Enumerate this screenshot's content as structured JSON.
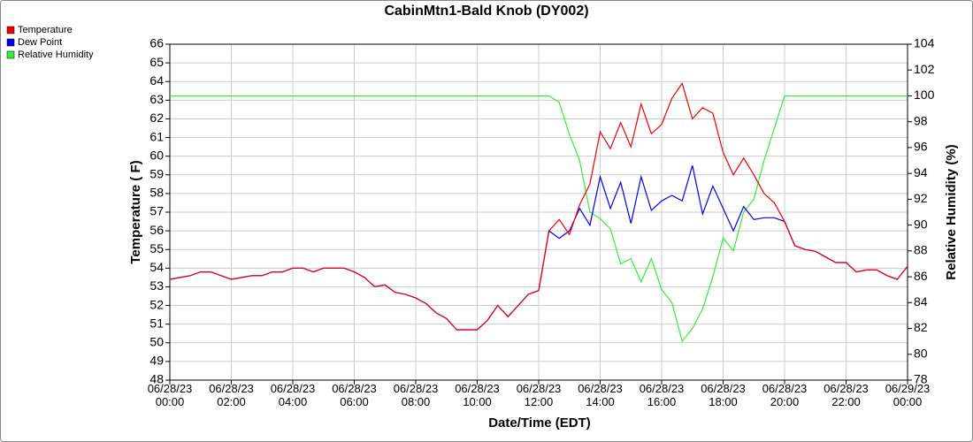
{
  "chart_data": {
    "type": "line",
    "title": "CabinMtn1-Bald Knob (DY002)",
    "x_label": "Date/Time (EDT)",
    "y_label": "Temperature ( F)",
    "y2_label": "Relative Humidity (%)",
    "x": [
      "06/28/23 00:00",
      "06/28/23 00:20",
      "06/28/23 00:40",
      "06/28/23 01:00",
      "06/28/23 01:20",
      "06/28/23 01:40",
      "06/28/23 02:00",
      "06/28/23 02:20",
      "06/28/23 02:40",
      "06/28/23 03:00",
      "06/28/23 03:20",
      "06/28/23 03:40",
      "06/28/23 04:00",
      "06/28/23 04:20",
      "06/28/23 04:40",
      "06/28/23 05:00",
      "06/28/23 05:20",
      "06/28/23 05:40",
      "06/28/23 06:00",
      "06/28/23 06:20",
      "06/28/23 06:40",
      "06/28/23 07:00",
      "06/28/23 07:20",
      "06/28/23 07:40",
      "06/28/23 08:00",
      "06/28/23 08:20",
      "06/28/23 08:40",
      "06/28/23 09:00",
      "06/28/23 09:20",
      "06/28/23 09:40",
      "06/28/23 10:00",
      "06/28/23 10:20",
      "06/28/23 10:40",
      "06/28/23 11:00",
      "06/28/23 11:20",
      "06/28/23 11:40",
      "06/28/23 12:00",
      "06/28/23 12:20",
      "06/28/23 12:40",
      "06/28/23 13:00",
      "06/28/23 13:20",
      "06/28/23 13:40",
      "06/28/23 14:00",
      "06/28/23 14:20",
      "06/28/23 14:40",
      "06/28/23 15:00",
      "06/28/23 15:20",
      "06/28/23 15:40",
      "06/28/23 16:00",
      "06/28/23 16:20",
      "06/28/23 16:40",
      "06/28/23 17:00",
      "06/28/23 17:20",
      "06/28/23 17:40",
      "06/28/23 18:00",
      "06/28/23 18:20",
      "06/28/23 18:40",
      "06/28/23 19:00",
      "06/28/23 19:20",
      "06/28/23 19:40",
      "06/28/23 20:00",
      "06/28/23 20:20",
      "06/28/23 20:40",
      "06/28/23 21:00",
      "06/28/23 21:20",
      "06/28/23 21:40",
      "06/28/23 22:00",
      "06/28/23 22:20",
      "06/28/23 22:40",
      "06/28/23 23:00",
      "06/28/23 23:20",
      "06/28/23 23:40",
      "06/29/23 00:00"
    ],
    "xlim": [
      "06/28/23 00:00",
      "06/29/23 00:00"
    ],
    "xticks": [
      "06/28/23 00:00",
      "06/28/23 02:00",
      "06/28/23 04:00",
      "06/28/23 06:00",
      "06/28/23 08:00",
      "06/28/23 10:00",
      "06/28/23 12:00",
      "06/28/23 14:00",
      "06/28/23 16:00",
      "06/28/23 18:00",
      "06/28/23 20:00",
      "06/28/23 22:00",
      "06/29/23 00:00"
    ],
    "ylim": [
      48,
      66
    ],
    "yticks": [
      48,
      49,
      50,
      51,
      52,
      53,
      54,
      55,
      56,
      57,
      58,
      59,
      60,
      61,
      62,
      63,
      64,
      65,
      66
    ],
    "y2lim": [
      78,
      104
    ],
    "y2ticks": [
      78,
      80,
      82,
      84,
      86,
      88,
      90,
      92,
      94,
      96,
      98,
      100,
      102,
      104
    ],
    "grid": true,
    "legend": "top-left",
    "series": [
      {
        "name": "Relative Humidity",
        "color": "#33ee33",
        "axis": "y2",
        "values": [
          100,
          100,
          100,
          100,
          100,
          100,
          100,
          100,
          100,
          100,
          100,
          100,
          100,
          100,
          100,
          100,
          100,
          100,
          100,
          100,
          100,
          100,
          100,
          100,
          100,
          100,
          100,
          100,
          100,
          100,
          100,
          100,
          100,
          100,
          100,
          100,
          100,
          100,
          99.5,
          97,
          95,
          91,
          90.5,
          89.7,
          87,
          87.4,
          85.6,
          87.4,
          85.0,
          84.0,
          81,
          82,
          83.5,
          86,
          89,
          88,
          91,
          92,
          95,
          97.5,
          100,
          100,
          100,
          100,
          100,
          100,
          100,
          100,
          100,
          100,
          100,
          100,
          100
        ]
      },
      {
        "name": "Dew Point",
        "color": "#0000ee",
        "values": [
          53.4,
          53.5,
          53.6,
          53.8,
          53.8,
          53.6,
          53.4,
          53.5,
          53.6,
          53.6,
          53.8,
          53.8,
          54.0,
          54.0,
          53.8,
          54.0,
          54.0,
          54.0,
          53.8,
          53.5,
          53.0,
          53.1,
          52.7,
          52.6,
          52.4,
          52.1,
          51.6,
          51.3,
          50.7,
          50.7,
          50.7,
          51.2,
          52.0,
          51.4,
          52.0,
          52.6,
          52.8,
          56.0,
          55.6,
          56.0,
          57.2,
          56.3,
          58.9,
          57.2,
          58.6,
          56.4,
          58.9,
          57.1,
          57.6,
          57.9,
          57.6,
          59.5,
          56.9,
          58.4,
          57.2,
          56.0,
          57.3,
          56.6,
          56.7,
          56.7,
          56.5,
          55.2,
          55.0,
          54.9,
          54.6,
          54.3,
          54.3,
          53.8,
          53.9,
          53.9,
          53.6,
          53.4,
          54.1
        ]
      },
      {
        "name": "Temperature",
        "color": "#ee0000",
        "values": [
          53.4,
          53.5,
          53.6,
          53.8,
          53.8,
          53.6,
          53.4,
          53.5,
          53.6,
          53.6,
          53.8,
          53.8,
          54.0,
          54.0,
          53.8,
          54.0,
          54.0,
          54.0,
          53.8,
          53.5,
          53.0,
          53.1,
          52.7,
          52.6,
          52.4,
          52.1,
          51.6,
          51.3,
          50.7,
          50.7,
          50.7,
          51.2,
          52.0,
          51.4,
          52.0,
          52.6,
          52.8,
          56.0,
          56.6,
          55.8,
          57.4,
          58.5,
          61.3,
          60.4,
          61.8,
          60.5,
          62.8,
          61.2,
          61.7,
          63.1,
          63.9,
          62.0,
          62.6,
          62.3,
          60.2,
          59.0,
          59.9,
          59.0,
          58.0,
          57.5,
          56.5,
          55.2,
          55.0,
          54.9,
          54.6,
          54.3,
          54.3,
          53.8,
          53.9,
          53.9,
          53.6,
          53.4,
          54.1
        ]
      }
    ]
  }
}
